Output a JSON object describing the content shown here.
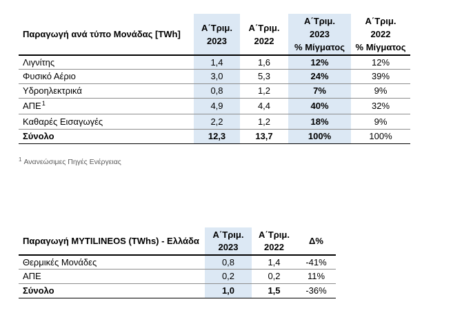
{
  "colors": {
    "highlight_column": "#dce8f4",
    "text": "#000000",
    "footnote_text": "#595959"
  },
  "production_by_unit": {
    "headers": {
      "category": "Παραγωγή ανά τύπο Μονάδας [TWh]",
      "q1_2023": {
        "line1": "Α΄Τριμ.",
        "line2": "2023"
      },
      "q1_2022": {
        "line1": "Α΄Τριμ.",
        "line2": "2022"
      },
      "mix_q1_2023": {
        "line1": "Α΄Τριμ.",
        "line2": "2023",
        "line3": "% Μίγματος"
      },
      "mix_q1_2022": {
        "line1": "Α΄Τριμ.",
        "line2": "2022",
        "line3": "% Μίγματος"
      }
    },
    "rows": [
      {
        "label": "Λιγνίτης",
        "q1_2023": "1,4",
        "q1_2022": "1,6",
        "mix_q1_2023": "12%",
        "mix_q1_2022": "12%"
      },
      {
        "label": "Φυσικό Αέριο",
        "q1_2023": "3,0",
        "q1_2022": "5,3",
        "mix_q1_2023": "24%",
        "mix_q1_2022": "39%"
      },
      {
        "label": "Υδροηλεκτρικά",
        "q1_2023": "0,8",
        "q1_2022": "1,2",
        "mix_q1_2023": "7%",
        "mix_q1_2022": "9%"
      },
      {
        "label": "ΑΠΕ",
        "footnote_marker": "1",
        "q1_2023": "4,9",
        "q1_2022": "4,4",
        "mix_q1_2023": "40%",
        "mix_q1_2022": "32%"
      },
      {
        "label": "Καθαρές Εισαγωγές",
        "q1_2023": "2,2",
        "q1_2022": "1,2",
        "mix_q1_2023": "18%",
        "mix_q1_2022": "9%"
      }
    ],
    "total": {
      "label": "Σύνολο",
      "q1_2023": "12,3",
      "q1_2022": "13,7",
      "mix_q1_2023": "100%",
      "mix_q1_2022": "100%"
    }
  },
  "footnote": {
    "marker": "1",
    "text": "Ανανεώσιμες Πηγές Ενέργειας"
  },
  "mytilineos_greece": {
    "headers": {
      "category": "Παραγωγή MYTILINEOS (TWhs) - Ελλάδα",
      "q1_2023": {
        "line1": "Α΄Τριμ.",
        "line2": "2023"
      },
      "q1_2022": {
        "line1": "Α΄Τριμ.",
        "line2": "2022"
      },
      "change": "Δ%"
    },
    "rows": [
      {
        "label": "Θερμικές Μονάδες",
        "q1_2023": "0,8",
        "q1_2022": "1,4",
        "change": "-41%"
      },
      {
        "label": "ΑΠΕ",
        "q1_2023": "0,2",
        "q1_2022": "0,2",
        "change": "11%"
      }
    ],
    "total": {
      "label": "Σύνολο",
      "q1_2023": "1,0",
      "q1_2022": "1,5",
      "change": "-36%"
    }
  }
}
